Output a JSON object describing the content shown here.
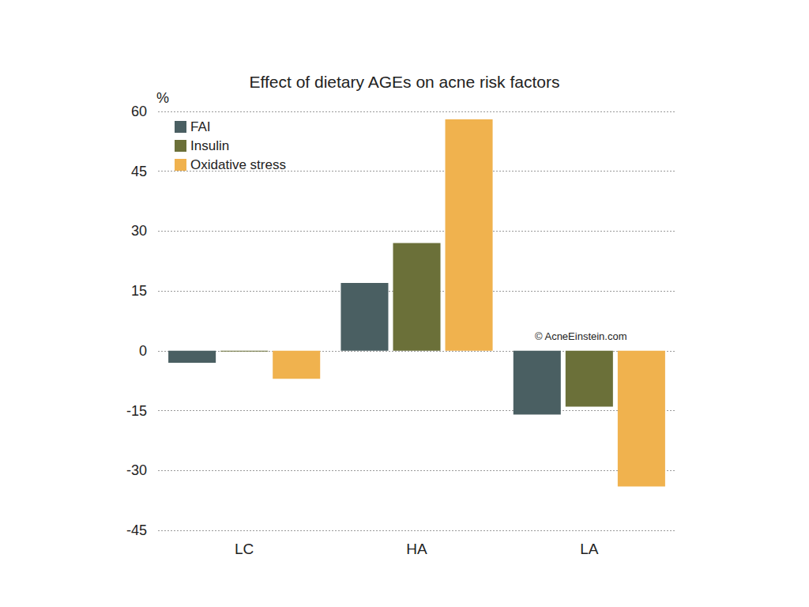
{
  "chart_data": {
    "type": "bar",
    "title": "Effect of dietary AGEs on acne risk factors",
    "ylabel": "%",
    "categories": [
      "LC",
      "HA",
      "LA"
    ],
    "series": [
      {
        "name": "FAI",
        "color": "#4a5f62",
        "values": [
          -3,
          17,
          -16
        ]
      },
      {
        "name": "Insulin",
        "color": "#6b7039",
        "values": [
          -0.2,
          27,
          -14
        ]
      },
      {
        "name": "Oxidative stress",
        "color": "#f0b24e",
        "values": [
          -7,
          58,
          -34
        ]
      }
    ],
    "ylim": [
      -45,
      60
    ],
    "yticks": [
      -45,
      -30,
      -15,
      0,
      15,
      30,
      45,
      60
    ],
    "grid": true,
    "legend": "top-left",
    "annotations": [
      "© AcneEinstein.com"
    ]
  }
}
